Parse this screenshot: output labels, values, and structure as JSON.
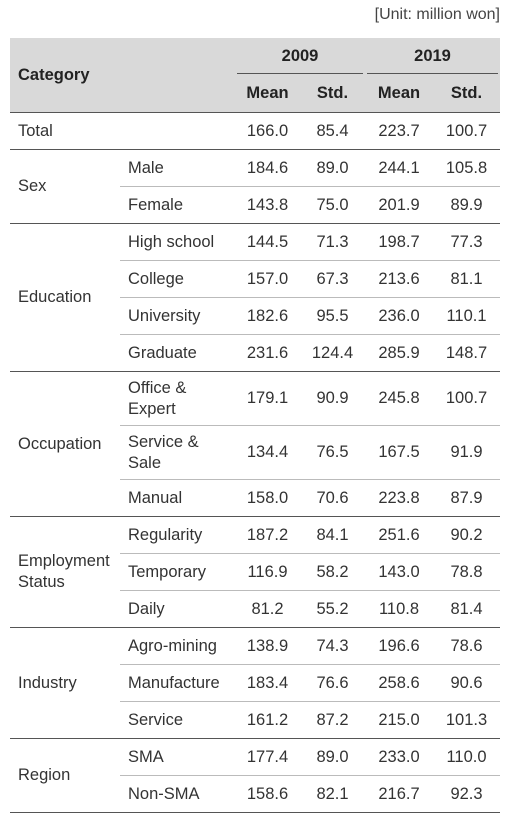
{
  "unit": "[Unit: million won]",
  "header": {
    "category": "Category",
    "years": [
      "2009",
      "2019"
    ],
    "stats": [
      "Mean",
      "Std.",
      "Mean",
      "Std."
    ]
  },
  "groups": [
    {
      "label": "Total",
      "rows": [
        {
          "values": [
            "166.0",
            "85.4",
            "223.7",
            "100.7"
          ]
        }
      ]
    },
    {
      "label": "Sex",
      "rows": [
        {
          "label": "Male",
          "values": [
            "184.6",
            "89.0",
            "244.1",
            "105.8"
          ]
        },
        {
          "label": "Female",
          "values": [
            "143.8",
            "75.0",
            "201.9",
            "89.9"
          ]
        }
      ]
    },
    {
      "label": "Education",
      "rows": [
        {
          "label": "High school",
          "values": [
            "144.5",
            "71.3",
            "198.7",
            "77.3"
          ]
        },
        {
          "label": "College",
          "values": [
            "157.0",
            "67.3",
            "213.6",
            "81.1"
          ]
        },
        {
          "label": "University",
          "values": [
            "182.6",
            "95.5",
            "236.0",
            "110.1"
          ]
        },
        {
          "label": "Graduate",
          "values": [
            "231.6",
            "124.4",
            "285.9",
            "148.7"
          ]
        }
      ]
    },
    {
      "label": "Occupation",
      "rows": [
        {
          "label": "Office & Expert",
          "values": [
            "179.1",
            "90.9",
            "245.8",
            "100.7"
          ]
        },
        {
          "label": "Service & Sale",
          "values": [
            "134.4",
            "76.5",
            "167.5",
            "91.9"
          ]
        },
        {
          "label": "Manual",
          "values": [
            "158.0",
            "70.6",
            "223.8",
            "87.9"
          ]
        }
      ]
    },
    {
      "label": "Employment Status",
      "rows": [
        {
          "label": "Regularity",
          "values": [
            "187.2",
            "84.1",
            "251.6",
            "90.2"
          ]
        },
        {
          "label": "Temporary",
          "values": [
            "116.9",
            "58.2",
            "143.0",
            "78.8"
          ]
        },
        {
          "label": "Daily",
          "values": [
            "81.2",
            "55.2",
            "110.8",
            "81.4"
          ]
        }
      ]
    },
    {
      "label": "Industry",
      "rows": [
        {
          "label": "Agro-mining",
          "values": [
            "138.9",
            "74.3",
            "196.6",
            "78.6"
          ]
        },
        {
          "label": "Manufacture",
          "values": [
            "183.4",
            "76.6",
            "258.6",
            "90.6"
          ]
        },
        {
          "label": "Service",
          "values": [
            "161.2",
            "87.2",
            "215.0",
            "101.3"
          ]
        }
      ]
    },
    {
      "label": "Region",
      "rows": [
        {
          "label": "SMA",
          "values": [
            "177.4",
            "89.0",
            "233.0",
            "110.0"
          ]
        },
        {
          "label": "Non-SMA",
          "values": [
            "158.6",
            "82.1",
            "216.7",
            "92.3"
          ]
        }
      ]
    }
  ]
}
